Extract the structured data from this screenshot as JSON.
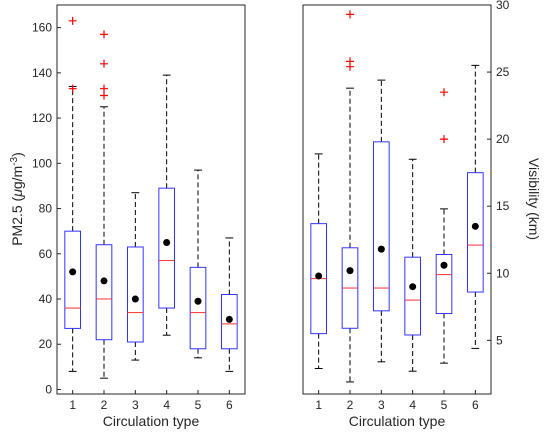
{
  "chart_data": [
    {
      "type": "box",
      "xlabel": "Circulation type",
      "ylabel_main": "PM2.5 (",
      "ylabel_mu": "μ",
      "ylabel_unit": "g/m",
      "ylabel_exp": "-3",
      "ylabel_close": ")",
      "ylim": [
        -2,
        170
      ],
      "yticks": [
        "0",
        "20",
        "40",
        "60",
        "80",
        "100",
        "120",
        "140",
        "160"
      ],
      "categories": [
        "1",
        "2",
        "3",
        "4",
        "5",
        "6"
      ],
      "boxes": [
        {
          "category": "1",
          "whisker_low": 8,
          "q1": 27,
          "median": 36,
          "q3": 70,
          "whisker_high": 134,
          "mean": 52,
          "outliers": [
            133,
            163
          ]
        },
        {
          "category": "2",
          "whisker_low": 5,
          "q1": 22,
          "median": 40,
          "q3": 64,
          "whisker_high": 125,
          "mean": 48,
          "outliers": [
            130,
            133,
            144,
            157
          ]
        },
        {
          "category": "3",
          "whisker_low": 13,
          "q1": 21,
          "median": 34,
          "q3": 63,
          "whisker_high": 87,
          "mean": 40,
          "outliers": []
        },
        {
          "category": "4",
          "whisker_low": 24,
          "q1": 36,
          "median": 57,
          "q3": 89,
          "whisker_high": 139,
          "mean": 65,
          "outliers": []
        },
        {
          "category": "5",
          "whisker_low": 14,
          "q1": 18,
          "median": 34,
          "q3": 54,
          "whisker_high": 97,
          "mean": 39,
          "outliers": []
        },
        {
          "category": "6",
          "whisker_low": 8,
          "q1": 18,
          "median": 29,
          "q3": 42,
          "whisker_high": 67,
          "mean": 31,
          "outliers": []
        }
      ],
      "colors": {
        "box": "#3333ff",
        "median": "#ff3333",
        "outlier": "#ff0000",
        "mean": "#000000",
        "whisker": "#000000"
      }
    },
    {
      "type": "box",
      "xlabel": "Circulation type",
      "ylabel": "Visibility (km)",
      "ylabel_side": "right",
      "ylim": [
        1,
        30
      ],
      "yticks": [
        "5",
        "10",
        "15",
        "20",
        "25",
        "30"
      ],
      "categories": [
        "1",
        "2",
        "3",
        "4",
        "5",
        "6"
      ],
      "boxes": [
        {
          "category": "1",
          "whisker_low": 2.9,
          "q1": 5.5,
          "median": 9.6,
          "q3": 13.7,
          "whisker_high": 18.9,
          "mean": 9.8,
          "outliers": []
        },
        {
          "category": "2",
          "whisker_low": 1.9,
          "q1": 5.9,
          "median": 8.9,
          "q3": 11.9,
          "whisker_high": 23.8,
          "mean": 10.2,
          "outliers": [
            25.4,
            25.8,
            29.3
          ]
        },
        {
          "category": "3",
          "whisker_low": 3.4,
          "q1": 7.2,
          "median": 8.9,
          "q3": 19.8,
          "whisker_high": 24.4,
          "mean": 11.8,
          "outliers": []
        },
        {
          "category": "4",
          "whisker_low": 2.7,
          "q1": 5.4,
          "median": 8.0,
          "q3": 11.2,
          "whisker_high": 18.5,
          "mean": 9.0,
          "outliers": []
        },
        {
          "category": "5",
          "whisker_low": 3.3,
          "q1": 7.0,
          "median": 9.9,
          "q3": 11.4,
          "whisker_high": 14.8,
          "mean": 10.6,
          "outliers": [
            20.0,
            23.5
          ]
        },
        {
          "category": "6",
          "whisker_low": 4.4,
          "q1": 8.6,
          "median": 12.1,
          "q3": 17.5,
          "whisker_high": 25.5,
          "mean": 13.5,
          "outliers": []
        }
      ],
      "colors": {
        "box": "#3333ff",
        "median": "#ff3333",
        "outlier": "#ff0000",
        "mean": "#000000",
        "whisker": "#000000"
      }
    }
  ]
}
